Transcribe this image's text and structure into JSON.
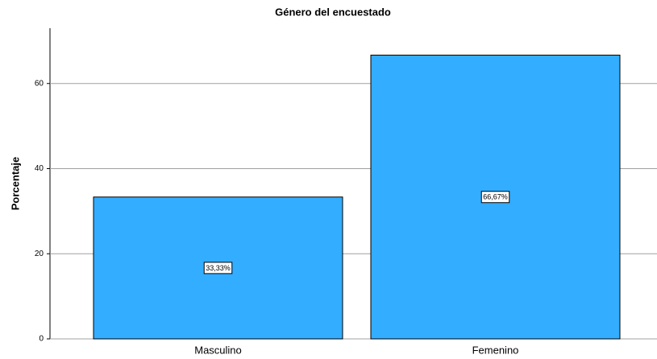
{
  "chart_data": {
    "type": "bar",
    "title": "Género del encuestado",
    "ylabel": "Porcentaje",
    "categories": [
      "Masculino",
      "Femenino"
    ],
    "values": [
      33.33,
      66.67
    ],
    "value_labels": [
      "33,33%",
      "66,67%"
    ],
    "color": "#33adff",
    "ylim": [
      0,
      73
    ],
    "yticks": [
      0,
      20,
      40,
      60
    ],
    "grid": true
  }
}
